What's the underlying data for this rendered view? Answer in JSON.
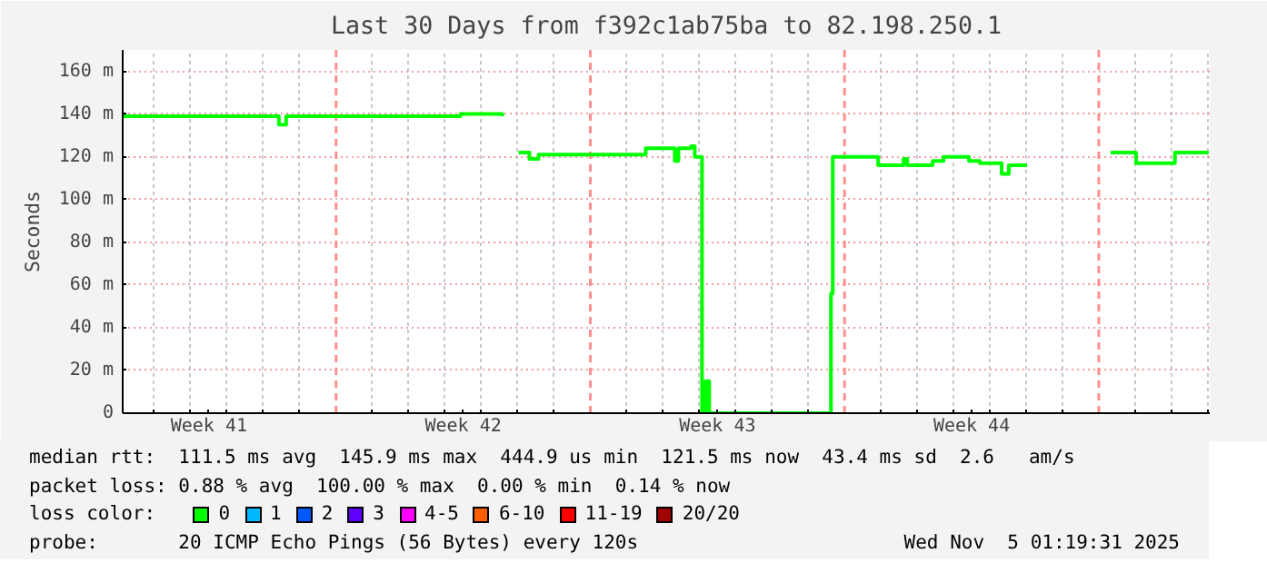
{
  "chart_data": {
    "type": "step",
    "title": "Last 30 Days from f392c1ab75ba to 82.198.250.1",
    "ylabel": "Seconds",
    "legend_title": "loss color:",
    "legend": "bottom",
    "grid": true,
    "xlim": [
      "2025-10-06T03:00",
      "2025-11-05T01:19"
    ],
    "xticks": [
      {
        "value": "2025-10-07",
        "label": null
      },
      {
        "value": "2025-10-08",
        "label": null
      },
      {
        "value": "2025-10-08T12:00",
        "label": "Week 41"
      },
      {
        "value": "2025-10-09",
        "label": null
      },
      {
        "value": "2025-10-10",
        "label": null
      },
      {
        "value": "2025-10-11",
        "label": null
      },
      {
        "value": "2025-10-13",
        "label": null
      },
      {
        "value": "2025-10-14",
        "label": null
      },
      {
        "value": "2025-10-15",
        "label": null
      },
      {
        "value": "2025-10-15T12:00",
        "label": "Week 42"
      },
      {
        "value": "2025-10-16",
        "label": null
      },
      {
        "value": "2025-10-17",
        "label": null
      },
      {
        "value": "2025-10-18",
        "label": null
      },
      {
        "value": "2025-10-20",
        "label": null
      },
      {
        "value": "2025-10-21",
        "label": null
      },
      {
        "value": "2025-10-22",
        "label": null
      },
      {
        "value": "2025-10-22T12:00",
        "label": "Week 43"
      },
      {
        "value": "2025-10-23",
        "label": null
      },
      {
        "value": "2025-10-24",
        "label": null
      },
      {
        "value": "2025-10-25",
        "label": null
      },
      {
        "value": "2025-10-27",
        "label": null
      },
      {
        "value": "2025-10-28",
        "label": null
      },
      {
        "value": "2025-10-29",
        "label": null
      },
      {
        "value": "2025-10-29T12:00",
        "label": "Week 44"
      },
      {
        "value": "2025-10-30",
        "label": null
      },
      {
        "value": "2025-10-31",
        "label": null
      },
      {
        "value": "2025-11-01",
        "label": null
      },
      {
        "value": "2025-11-03",
        "label": null
      },
      {
        "value": "2025-11-04",
        "label": null
      },
      {
        "value": "2025-11-05",
        "label": null
      }
    ],
    "ylim": [
      0,
      170
    ],
    "yticks": [
      {
        "value": 0,
        "label": "0"
      },
      {
        "value": 20,
        "label": "20 m"
      },
      {
        "value": 40,
        "label": "40 m"
      },
      {
        "value": 60,
        "label": "60 m"
      },
      {
        "value": 80,
        "label": "80 m"
      },
      {
        "value": 100,
        "label": "100 m"
      },
      {
        "value": 120,
        "label": "120 m"
      },
      {
        "value": 140,
        "label": "140 m"
      },
      {
        "value": 160,
        "label": "160 m"
      }
    ],
    "ref_lines": [
      {
        "axis": "x",
        "value": "2025-10-12",
        "label": null,
        "color": "#ff9090",
        "line_style": "dashed"
      },
      {
        "axis": "x",
        "value": "2025-10-19",
        "label": null,
        "color": "#ff9090",
        "line_style": "dashed"
      },
      {
        "axis": "x",
        "value": "2025-10-26",
        "label": null,
        "color": "#ff9090",
        "line_style": "dashed"
      },
      {
        "axis": "x",
        "value": "2025-11-02",
        "label": null,
        "color": "#ff9090",
        "line_style": "dashed"
      }
    ],
    "x": [
      "2025-10-06T03:00",
      "2025-10-10T05:24",
      "2025-10-10T10:12",
      "2025-10-10T15:00",
      "2025-10-15T05:24",
      "2025-10-15T10:12",
      "2025-10-16T13:48",
      "2025-10-16T15:00",
      "2025-10-17T00:36",
      "2025-10-17T07:48",
      "2025-10-17T13:48",
      "2025-10-20T12:36",
      "2025-10-21T07:48",
      "2025-10-21T10:12",
      "2025-10-21T18:36",
      "2025-10-21T21:00",
      "2025-10-22T01:48",
      "2025-10-22T04:12",
      "2025-10-22T06:36",
      "2025-10-25T15:00",
      "2025-10-25T16:12",
      "2025-10-26T22:12",
      "2025-10-27T15:00",
      "2025-10-27T17:24",
      "2025-10-27T21:00",
      "2025-10-28T10:12",
      "2025-10-28T17:24",
      "2025-10-29T10:12",
      "2025-10-29T17:24",
      "2025-10-30T00:36",
      "2025-10-30T07:48",
      "2025-10-30T12:36",
      "2025-10-31T00:36",
      "2025-10-31T03:00",
      "2025-11-02T07:48",
      "2025-11-02T15:00",
      "2025-11-03T00:36",
      "2025-11-03T03:00",
      "2025-11-04T02:18",
      "2025-11-05T00:36"
    ],
    "series": [
      {
        "name": "0",
        "color": "#00ff00",
        "values": [
          139,
          139,
          135,
          139,
          139,
          140,
          139,
          null,
          122,
          119,
          121,
          124,
          118,
          124,
          125,
          120,
          0,
          15,
          0,
          56,
          120,
          116,
          119,
          116,
          116,
          118,
          120,
          118,
          117,
          117,
          112,
          116,
          116,
          null,
          122,
          122,
          117,
          117,
          122,
          122
        ]
      },
      {
        "name": "1",
        "color": "#00b8ff",
        "values": [
          null,
          null,
          null,
          null,
          null,
          null,
          null,
          null,
          null,
          null,
          null,
          null,
          null,
          null,
          null,
          null,
          null,
          null,
          null,
          null,
          null,
          null,
          null,
          null,
          null,
          null,
          null,
          null,
          null,
          null,
          null,
          null,
          null,
          null,
          null,
          null,
          null,
          null,
          null,
          null
        ]
      },
      {
        "name": "2",
        "color": "#0059ff",
        "values": [
          null,
          null,
          null,
          null,
          null,
          null,
          null,
          null,
          null,
          null,
          null,
          null,
          null,
          null,
          null,
          null,
          null,
          null,
          null,
          null,
          null,
          null,
          null,
          null,
          null,
          null,
          null,
          null,
          null,
          null,
          null,
          null,
          null,
          null,
          null,
          null,
          null,
          null,
          null,
          null
        ]
      },
      {
        "name": "3",
        "color": "#5e00ff",
        "values": [
          null,
          null,
          null,
          null,
          null,
          null,
          null,
          null,
          null,
          null,
          null,
          null,
          null,
          null,
          null,
          null,
          null,
          null,
          null,
          null,
          null,
          null,
          null,
          null,
          null,
          null,
          null,
          null,
          null,
          null,
          null,
          null,
          null,
          null,
          null,
          null,
          null,
          null,
          null,
          null
        ]
      },
      {
        "name": "4-5",
        "color": "#ff00ff",
        "values": [
          null,
          null,
          null,
          null,
          null,
          null,
          null,
          null,
          null,
          null,
          null,
          null,
          null,
          null,
          null,
          null,
          null,
          null,
          null,
          null,
          null,
          null,
          null,
          null,
          null,
          null,
          null,
          null,
          null,
          null,
          null,
          null,
          null,
          null,
          null,
          null,
          null,
          null,
          null,
          null
        ]
      },
      {
        "name": "6-10",
        "color": "#ff5e00",
        "values": [
          null,
          null,
          null,
          null,
          null,
          null,
          null,
          null,
          null,
          null,
          null,
          null,
          null,
          null,
          null,
          null,
          null,
          null,
          null,
          null,
          null,
          null,
          null,
          null,
          null,
          null,
          null,
          null,
          null,
          null,
          null,
          null,
          null,
          null,
          null,
          null,
          null,
          null,
          null,
          null
        ]
      },
      {
        "name": "11-19",
        "color": "#ff0000",
        "values": [
          null,
          null,
          null,
          null,
          null,
          null,
          null,
          null,
          null,
          null,
          null,
          null,
          null,
          null,
          null,
          null,
          null,
          null,
          null,
          null,
          null,
          null,
          null,
          null,
          null,
          null,
          null,
          null,
          null,
          null,
          null,
          null,
          null,
          null,
          null,
          null,
          null,
          null,
          null,
          null
        ]
      },
      {
        "name": "20/20",
        "color": "#a10000",
        "values": [
          null,
          null,
          null,
          null,
          null,
          null,
          null,
          null,
          null,
          null,
          null,
          null,
          null,
          null,
          null,
          null,
          null,
          null,
          null,
          null,
          null,
          null,
          null,
          null,
          null,
          null,
          null,
          null,
          null,
          null,
          null,
          null,
          null,
          null,
          null,
          null,
          null,
          null,
          null,
          null
        ]
      }
    ],
    "annotations": [
      "median rtt:  111.5 ms avg  145.9 ms max  444.9 us min  121.5 ms now  43.4 ms sd  2.6   am/s",
      "packet loss: 0.88 % avg  100.00 % max  0.00 % min  0.14 % now",
      "probe:       20 ICMP Echo Pings (56 Bytes) every 120s",
      "Wed Nov  5 01:19:31 2025"
    ]
  }
}
